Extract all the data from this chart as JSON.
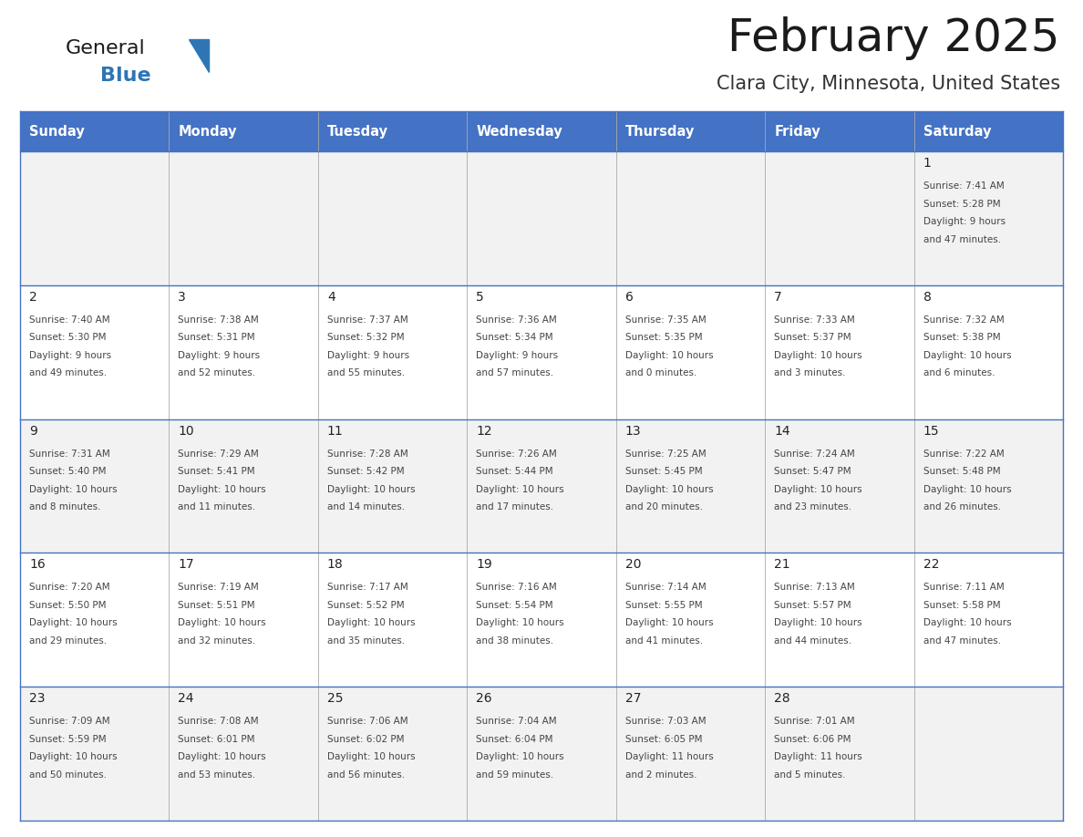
{
  "title": "February 2025",
  "subtitle": "Clara City, Minnesota, United States",
  "header_bg_color": "#4472C4",
  "header_text_color": "#FFFFFF",
  "cell_bg_row0": "#F2F2F2",
  "cell_bg_row1": "#FFFFFF",
  "border_color": "#4472C4",
  "grid_color": "#AAAAAA",
  "days_of_week": [
    "Sunday",
    "Monday",
    "Tuesday",
    "Wednesday",
    "Thursday",
    "Friday",
    "Saturday"
  ],
  "title_color": "#1a1a1a",
  "subtitle_color": "#333333",
  "logo_general_color": "#1a1a1a",
  "logo_blue_color": "#2E75B6",
  "text_color": "#222222",
  "detail_color": "#444444",
  "calendar_data": [
    [
      null,
      null,
      null,
      null,
      null,
      null,
      {
        "day": "1",
        "sunrise": "7:41 AM",
        "sunset": "5:28 PM",
        "daylight_h": "9 hours",
        "daylight_m": "47 minutes"
      }
    ],
    [
      {
        "day": "2",
        "sunrise": "7:40 AM",
        "sunset": "5:30 PM",
        "daylight_h": "9 hours",
        "daylight_m": "49 minutes"
      },
      {
        "day": "3",
        "sunrise": "7:38 AM",
        "sunset": "5:31 PM",
        "daylight_h": "9 hours",
        "daylight_m": "52 minutes"
      },
      {
        "day": "4",
        "sunrise": "7:37 AM",
        "sunset": "5:32 PM",
        "daylight_h": "9 hours",
        "daylight_m": "55 minutes"
      },
      {
        "day": "5",
        "sunrise": "7:36 AM",
        "sunset": "5:34 PM",
        "daylight_h": "9 hours",
        "daylight_m": "57 minutes"
      },
      {
        "day": "6",
        "sunrise": "7:35 AM",
        "sunset": "5:35 PM",
        "daylight_h": "10 hours",
        "daylight_m": "0 minutes"
      },
      {
        "day": "7",
        "sunrise": "7:33 AM",
        "sunset": "5:37 PM",
        "daylight_h": "10 hours",
        "daylight_m": "3 minutes"
      },
      {
        "day": "8",
        "sunrise": "7:32 AM",
        "sunset": "5:38 PM",
        "daylight_h": "10 hours",
        "daylight_m": "6 minutes"
      }
    ],
    [
      {
        "day": "9",
        "sunrise": "7:31 AM",
        "sunset": "5:40 PM",
        "daylight_h": "10 hours",
        "daylight_m": "8 minutes"
      },
      {
        "day": "10",
        "sunrise": "7:29 AM",
        "sunset": "5:41 PM",
        "daylight_h": "10 hours",
        "daylight_m": "11 minutes"
      },
      {
        "day": "11",
        "sunrise": "7:28 AM",
        "sunset": "5:42 PM",
        "daylight_h": "10 hours",
        "daylight_m": "14 minutes"
      },
      {
        "day": "12",
        "sunrise": "7:26 AM",
        "sunset": "5:44 PM",
        "daylight_h": "10 hours",
        "daylight_m": "17 minutes"
      },
      {
        "day": "13",
        "sunrise": "7:25 AM",
        "sunset": "5:45 PM",
        "daylight_h": "10 hours",
        "daylight_m": "20 minutes"
      },
      {
        "day": "14",
        "sunrise": "7:24 AM",
        "sunset": "5:47 PM",
        "daylight_h": "10 hours",
        "daylight_m": "23 minutes"
      },
      {
        "day": "15",
        "sunrise": "7:22 AM",
        "sunset": "5:48 PM",
        "daylight_h": "10 hours",
        "daylight_m": "26 minutes"
      }
    ],
    [
      {
        "day": "16",
        "sunrise": "7:20 AM",
        "sunset": "5:50 PM",
        "daylight_h": "10 hours",
        "daylight_m": "29 minutes"
      },
      {
        "day": "17",
        "sunrise": "7:19 AM",
        "sunset": "5:51 PM",
        "daylight_h": "10 hours",
        "daylight_m": "32 minutes"
      },
      {
        "day": "18",
        "sunrise": "7:17 AM",
        "sunset": "5:52 PM",
        "daylight_h": "10 hours",
        "daylight_m": "35 minutes"
      },
      {
        "day": "19",
        "sunrise": "7:16 AM",
        "sunset": "5:54 PM",
        "daylight_h": "10 hours",
        "daylight_m": "38 minutes"
      },
      {
        "day": "20",
        "sunrise": "7:14 AM",
        "sunset": "5:55 PM",
        "daylight_h": "10 hours",
        "daylight_m": "41 minutes"
      },
      {
        "day": "21",
        "sunrise": "7:13 AM",
        "sunset": "5:57 PM",
        "daylight_h": "10 hours",
        "daylight_m": "44 minutes"
      },
      {
        "day": "22",
        "sunrise": "7:11 AM",
        "sunset": "5:58 PM",
        "daylight_h": "10 hours",
        "daylight_m": "47 minutes"
      }
    ],
    [
      {
        "day": "23",
        "sunrise": "7:09 AM",
        "sunset": "5:59 PM",
        "daylight_h": "10 hours",
        "daylight_m": "50 minutes"
      },
      {
        "day": "24",
        "sunrise": "7:08 AM",
        "sunset": "6:01 PM",
        "daylight_h": "10 hours",
        "daylight_m": "53 minutes"
      },
      {
        "day": "25",
        "sunrise": "7:06 AM",
        "sunset": "6:02 PM",
        "daylight_h": "10 hours",
        "daylight_m": "56 minutes"
      },
      {
        "day": "26",
        "sunrise": "7:04 AM",
        "sunset": "6:04 PM",
        "daylight_h": "10 hours",
        "daylight_m": "59 minutes"
      },
      {
        "day": "27",
        "sunrise": "7:03 AM",
        "sunset": "6:05 PM",
        "daylight_h": "11 hours",
        "daylight_m": "2 minutes"
      },
      {
        "day": "28",
        "sunrise": "7:01 AM",
        "sunset": "6:06 PM",
        "daylight_h": "11 hours",
        "daylight_m": "5 minutes"
      },
      null
    ]
  ],
  "figsize": [
    11.88,
    9.18
  ],
  "dpi": 100
}
